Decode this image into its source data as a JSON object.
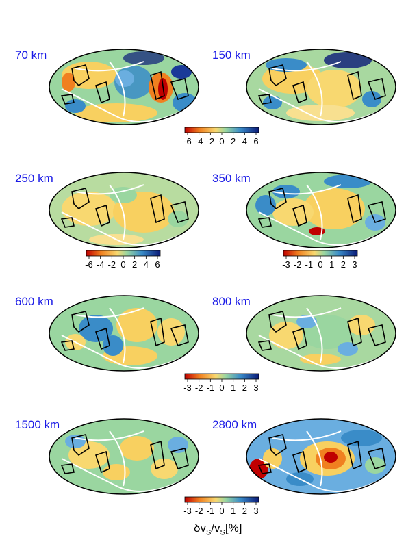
{
  "panels": [
    {
      "depth": "70 km"
    },
    {
      "depth": "150 km"
    },
    {
      "depth": "250 km"
    },
    {
      "depth": "350 km"
    },
    {
      "depth": "600 km"
    },
    {
      "depth": "800 km"
    },
    {
      "depth": "1500 km"
    },
    {
      "depth": "2800 km"
    }
  ],
  "colorbars": [
    {
      "ticks": [
        "-6",
        "-4",
        "-2",
        "0",
        "2",
        "4",
        "6"
      ]
    },
    {
      "ticks": [
        "-6",
        "-4",
        "-2",
        "0",
        "2",
        "4",
        "6"
      ]
    },
    {
      "ticks": [
        "-3",
        "-2",
        "-1",
        "0",
        "1",
        "2",
        "3"
      ]
    },
    {
      "ticks": [
        "-3",
        "-2",
        "-1",
        "0",
        "1",
        "2",
        "3"
      ]
    },
    {
      "ticks": [
        "-3",
        "-2",
        "-1",
        "0",
        "1",
        "2",
        "3"
      ]
    }
  ],
  "unit": {
    "delta": "δv",
    "sub1": "S",
    "slash": "/v",
    "sub2": "S",
    "percent": "[%]"
  },
  "colors": {
    "label": "#1a1ae6",
    "scale": [
      "#c00000",
      "#f08020",
      "#f8d060",
      "#8cd2a0",
      "#3a8cc8",
      "#0a1a78"
    ]
  }
}
